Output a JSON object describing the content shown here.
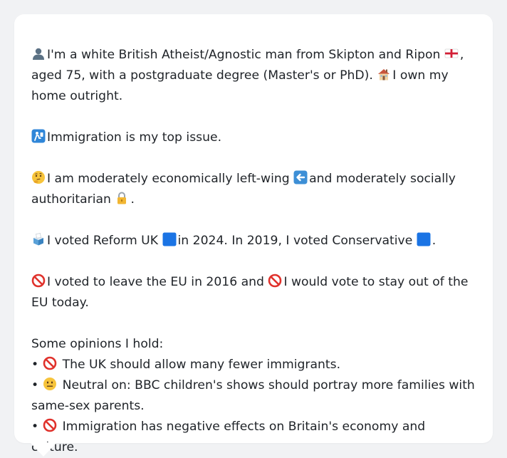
{
  "profile": {
    "intro": {
      "part1": "I'm a white British Atheist/Agnostic man from Skipton and Ripon",
      "part2": ", aged 75, with a postgraduate degree (Master's or PhD).",
      "part3": "I own my home outright."
    },
    "top_issue": "Immigration is my top issue.",
    "ideology": {
      "part1": "I am moderately economically left-wing",
      "part2": "and moderately socially authoritarian",
      "part3": "."
    },
    "votes": {
      "part1": "I voted Reform UK",
      "part2": "in 2024. In 2019, I voted Conservative",
      "part3": "."
    },
    "eu": {
      "part1": "I voted to leave the EU in 2016 and",
      "part2": "I would vote to stay out of the EU today."
    },
    "opinions_heading": "Some opinions I hold:",
    "bullet_char": "•",
    "opinions": [
      "The UK should allow many fewer immigrants.",
      "Neutral on: BBC children's shows should portray more families with same-sex parents.",
      "Immigration has negative effects on Britain's economy and culture."
    ]
  },
  "icons": {
    "person": "person-silhouette-icon",
    "flag": "england-flag-icon",
    "house": "house-icon",
    "passport": "passport-control-icon",
    "thinking": "thinking-face-icon",
    "left_arrow": "left-arrow-icon",
    "lock": "lock-icon",
    "ballot": "ballot-box-icon",
    "blue_square": "blue-square-icon",
    "prohibited": "prohibited-icon",
    "neutral": "neutral-face-icon"
  },
  "colors": {
    "background": "#f1f2f4",
    "card": "#ffffff",
    "text": "#1f2328",
    "blue_square": "#1b74e4",
    "prohibited": "#e0322c"
  }
}
